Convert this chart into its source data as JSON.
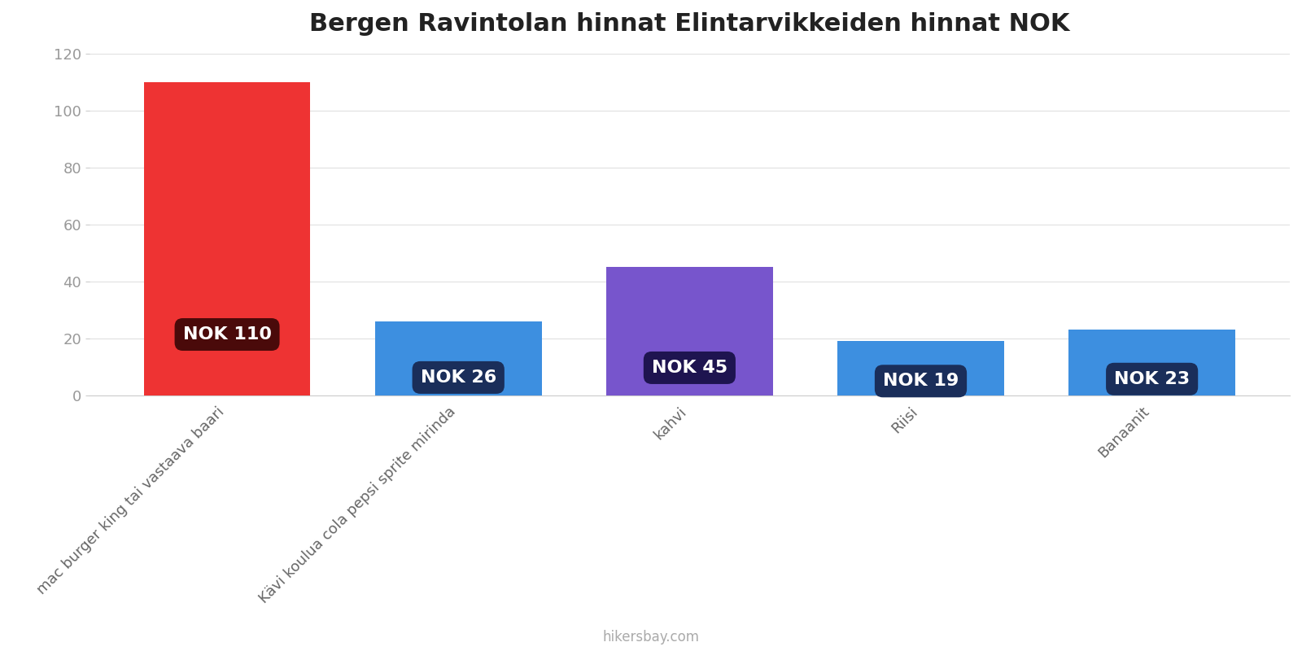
{
  "title": "Bergen Ravintolan hinnat Elintarvikkeiden hinnat NOK",
  "categories": [
    "mac burger king tai vastaava baari",
    "Kävi koulua cola pepsi sprite mirinda",
    "kahvi",
    "Riisi",
    "Banaanit"
  ],
  "values": [
    110,
    26,
    45,
    19,
    23
  ],
  "bar_colors": [
    "#ee3333",
    "#3d8fe0",
    "#7755cc",
    "#3d8fe0",
    "#3d8fe0"
  ],
  "label_bg_colors": [
    "#4a0a0a",
    "#1a2e5a",
    "#1e1450",
    "#1a2e5a",
    "#1a2e5a"
  ],
  "labels": [
    "NOK 110",
    "NOK 26",
    "NOK 45",
    "NOK 19",
    "NOK 23"
  ],
  "ylim": [
    0,
    120
  ],
  "yticks": [
    0,
    20,
    40,
    60,
    80,
    100,
    120
  ],
  "background_color": "#ffffff",
  "title_fontsize": 22,
  "tick_fontsize": 13,
  "label_fontsize": 16,
  "watermark": "hikersbay.com"
}
